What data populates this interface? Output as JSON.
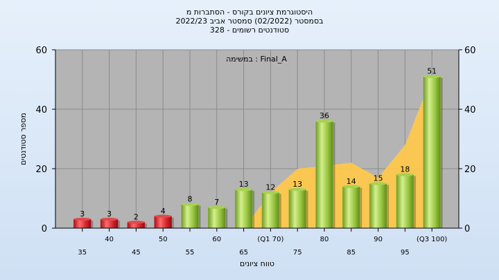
{
  "chart_data": {
    "type": "bar",
    "title_lines": [
      "היסטוגרמת ציונים בקורס - הסתברות מ",
      "בסמסטר (02/2022) סמסטר אביב 2022/23",
      "328 - סטודנטים רשומים"
    ],
    "annotation": "במשימה : Final_A",
    "xlabel": "טווח ציונים",
    "ylabel": "מספר סטודנטים",
    "ylim": [
      0,
      60
    ],
    "yticks": [
      0,
      20,
      40,
      60
    ],
    "grid": true,
    "categories": [
      "35",
      "40",
      "45",
      "50",
      "55",
      "60",
      "65",
      "(Q1 70)",
      "75",
      "80",
      "85",
      "90",
      "95",
      "(Q3 100)"
    ],
    "values": [
      3,
      3,
      2,
      4,
      8,
      7,
      13,
      12,
      13,
      36,
      14,
      15,
      18,
      51
    ],
    "bar_colors": [
      "#d0202a",
      "#d0202a",
      "#d0202a",
      "#d0202a",
      "#8fbf3a",
      "#8fbf3a",
      "#8fbf3a",
      "#8fbf3a",
      "#8fbf3a",
      "#8fbf3a",
      "#8fbf3a",
      "#8fbf3a",
      "#8fbf3a",
      "#8fbf3a"
    ],
    "area_values": [
      0,
      0,
      0,
      0,
      0,
      0,
      0,
      12,
      20,
      21,
      22,
      17,
      28,
      51
    ],
    "area_color": "#ffc94a",
    "plot_bg": "#b4b4b4"
  }
}
